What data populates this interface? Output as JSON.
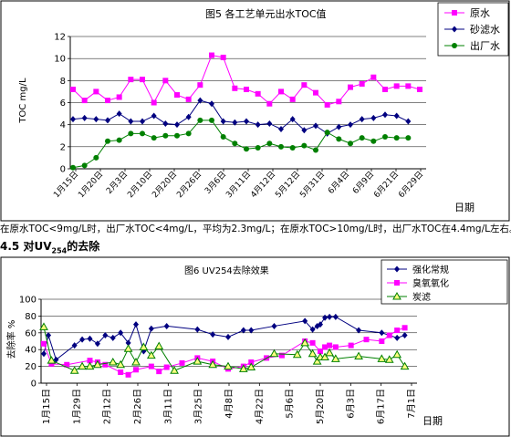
{
  "paragraph": "在原水TOC<9mg/L时，出厂水TOC<4mg/L，平均为2.3mg/L；在原水TOC>10mg/L时，出厂水TOC在4.4mg/L左右。",
  "heading": {
    "number": "4.5",
    "prefix": "对UV",
    "sub": "254",
    "suffix": "的去除"
  },
  "chart_data": [
    {
      "type": "line",
      "title": "图5  各工艺单元出水TOC值",
      "ylabel": "TOC  mg/L",
      "xlabel": "日期",
      "ylim": [
        0,
        12
      ],
      "yticks": [
        0,
        2,
        4,
        6,
        8,
        10,
        12
      ],
      "xlabels": [
        "1月15日",
        "1月20日",
        "2月3日",
        "2月10日",
        "2月20日",
        "2月26日",
        "3月6日",
        "3月11日",
        "4月12日",
        "5月12日",
        "5月31日",
        "6月4日",
        "6月9日",
        "6月21日",
        "6月29日"
      ],
      "legend_position": "top-right",
      "series": [
        {
          "name": "原水",
          "color": "#ff00ff",
          "marker": "square",
          "values": [
            7.2,
            6.2,
            7.0,
            6.2,
            6.5,
            8.1,
            8.1,
            6.0,
            8.0,
            6.7,
            6.3,
            7.6,
            10.3,
            10.1,
            7.3,
            7.2,
            6.8,
            5.9,
            7.0,
            6.3,
            7.6,
            6.9,
            5.8,
            6.1,
            7.4,
            7.7,
            8.3,
            7.2,
            7.5,
            7.5,
            7.2
          ]
        },
        {
          "name": "砂滤水",
          "color": "#000080",
          "marker": "diamond",
          "values": [
            4.5,
            4.6,
            4.5,
            4.4,
            5.0,
            4.3,
            4.3,
            4.8,
            4.1,
            4.0,
            4.7,
            6.2,
            5.9,
            4.3,
            4.2,
            4.3,
            4.0,
            4.1,
            3.6,
            4.5,
            3.5,
            3.9,
            3.2,
            3.8,
            4.0,
            4.5,
            4.6,
            4.9,
            4.8,
            4.3
          ]
        },
        {
          "name": "出厂水",
          "color": "#008000",
          "marker": "circle",
          "values": [
            0.1,
            0.3,
            1.0,
            2.5,
            2.6,
            3.2,
            3.2,
            2.8,
            3.0,
            3.0,
            3.2,
            4.4,
            4.4,
            2.9,
            2.3,
            1.8,
            1.9,
            2.3,
            2.0,
            1.9,
            2.1,
            1.7,
            3.3,
            2.7,
            2.3,
            2.8,
            2.5,
            2.9,
            2.8,
            2.8
          ]
        }
      ]
    },
    {
      "type": "line",
      "title": "图6  UV254去除效果",
      "ylabel": "去除率 %",
      "xlabel": "日期",
      "ylim": [
        0,
        100
      ],
      "yticks": [
        0,
        20,
        40,
        60,
        80,
        100
      ],
      "xlabels": [
        "1月15日",
        "1月29日",
        "2月12日",
        "2月26日",
        "3月11日",
        "3月25日",
        "4月8日",
        "4月22日",
        "5月6日",
        "5月20日",
        "6月3日",
        "6月17日",
        "7月1日"
      ],
      "legend_position": "top-right",
      "series": [
        {
          "name": "强化常规",
          "color": "#000080",
          "marker": "diamond",
          "points": [
            [
              0,
              35
            ],
            [
              0.3,
              57
            ],
            [
              0.8,
              28
            ],
            [
              2,
              45
            ],
            [
              2.5,
              52
            ],
            [
              3,
              53
            ],
            [
              3.5,
              47
            ],
            [
              4,
              57
            ],
            [
              4.5,
              54
            ],
            [
              5,
              60
            ],
            [
              5.5,
              48
            ],
            [
              6,
              70
            ],
            [
              6.5,
              38
            ],
            [
              7,
              65
            ],
            [
              8,
              68
            ],
            [
              10,
              64
            ],
            [
              11,
              58
            ],
            [
              12,
              55
            ],
            [
              13,
              63
            ],
            [
              13.5,
              63
            ],
            [
              15,
              68
            ],
            [
              17,
              74
            ],
            [
              17.5,
              64
            ],
            [
              17.8,
              68
            ],
            [
              18,
              70
            ],
            [
              18.3,
              78
            ],
            [
              18.6,
              79
            ],
            [
              19,
              79
            ],
            [
              20.5,
              63
            ],
            [
              22,
              60
            ],
            [
              23,
              54
            ],
            [
              23.5,
              57
            ]
          ]
        },
        {
          "name": "臭氧氧化",
          "color": "#ff00ff",
          "marker": "square",
          "points": [
            [
              0,
              47
            ],
            [
              0.5,
              23
            ],
            [
              1.5,
              22
            ],
            [
              3,
              27
            ],
            [
              3.5,
              25
            ],
            [
              4,
              22
            ],
            [
              5,
              13
            ],
            [
              5.5,
              10
            ],
            [
              6,
              16
            ],
            [
              7,
              20
            ],
            [
              7.5,
              14
            ],
            [
              8,
              19
            ],
            [
              9,
              24
            ],
            [
              10,
              30
            ],
            [
              11,
              26
            ],
            [
              12,
              17
            ],
            [
              13,
              20
            ],
            [
              13.5,
              25
            ],
            [
              14.5,
              30
            ],
            [
              15.5,
              33
            ],
            [
              17,
              50
            ],
            [
              17.5,
              48
            ],
            [
              18,
              38
            ],
            [
              18.3,
              43
            ],
            [
              18.6,
              45
            ],
            [
              19,
              43
            ],
            [
              20,
              45
            ],
            [
              21,
              52
            ],
            [
              22,
              50
            ],
            [
              22.5,
              57
            ],
            [
              23,
              63
            ],
            [
              23.5,
              66
            ]
          ]
        },
        {
          "name": "炭滤",
          "color": "#008000",
          "marker": "triangle",
          "points": [
            [
              0,
              67
            ],
            [
              0.5,
              27
            ],
            [
              2,
              15
            ],
            [
              2.5,
              20
            ],
            [
              3,
              20
            ],
            [
              3.5,
              22
            ],
            [
              4.5,
              25
            ],
            [
              5,
              22
            ],
            [
              5.5,
              41
            ],
            [
              6,
              25
            ],
            [
              6.5,
              43
            ],
            [
              7,
              33
            ],
            [
              7.5,
              44
            ],
            [
              8.5,
              15
            ],
            [
              10,
              26
            ],
            [
              11,
              22
            ],
            [
              12,
              20
            ],
            [
              13,
              17
            ],
            [
              13.5,
              19
            ],
            [
              15,
              35
            ],
            [
              16.5,
              34
            ],
            [
              17,
              48
            ],
            [
              17.5,
              35
            ],
            [
              17.8,
              26
            ],
            [
              18,
              31
            ],
            [
              18.3,
              31
            ],
            [
              18.6,
              36
            ],
            [
              19,
              29
            ],
            [
              20.5,
              32
            ],
            [
              22,
              29
            ],
            [
              22.5,
              28
            ],
            [
              23,
              34
            ],
            [
              23.5,
              20
            ]
          ]
        }
      ]
    }
  ]
}
